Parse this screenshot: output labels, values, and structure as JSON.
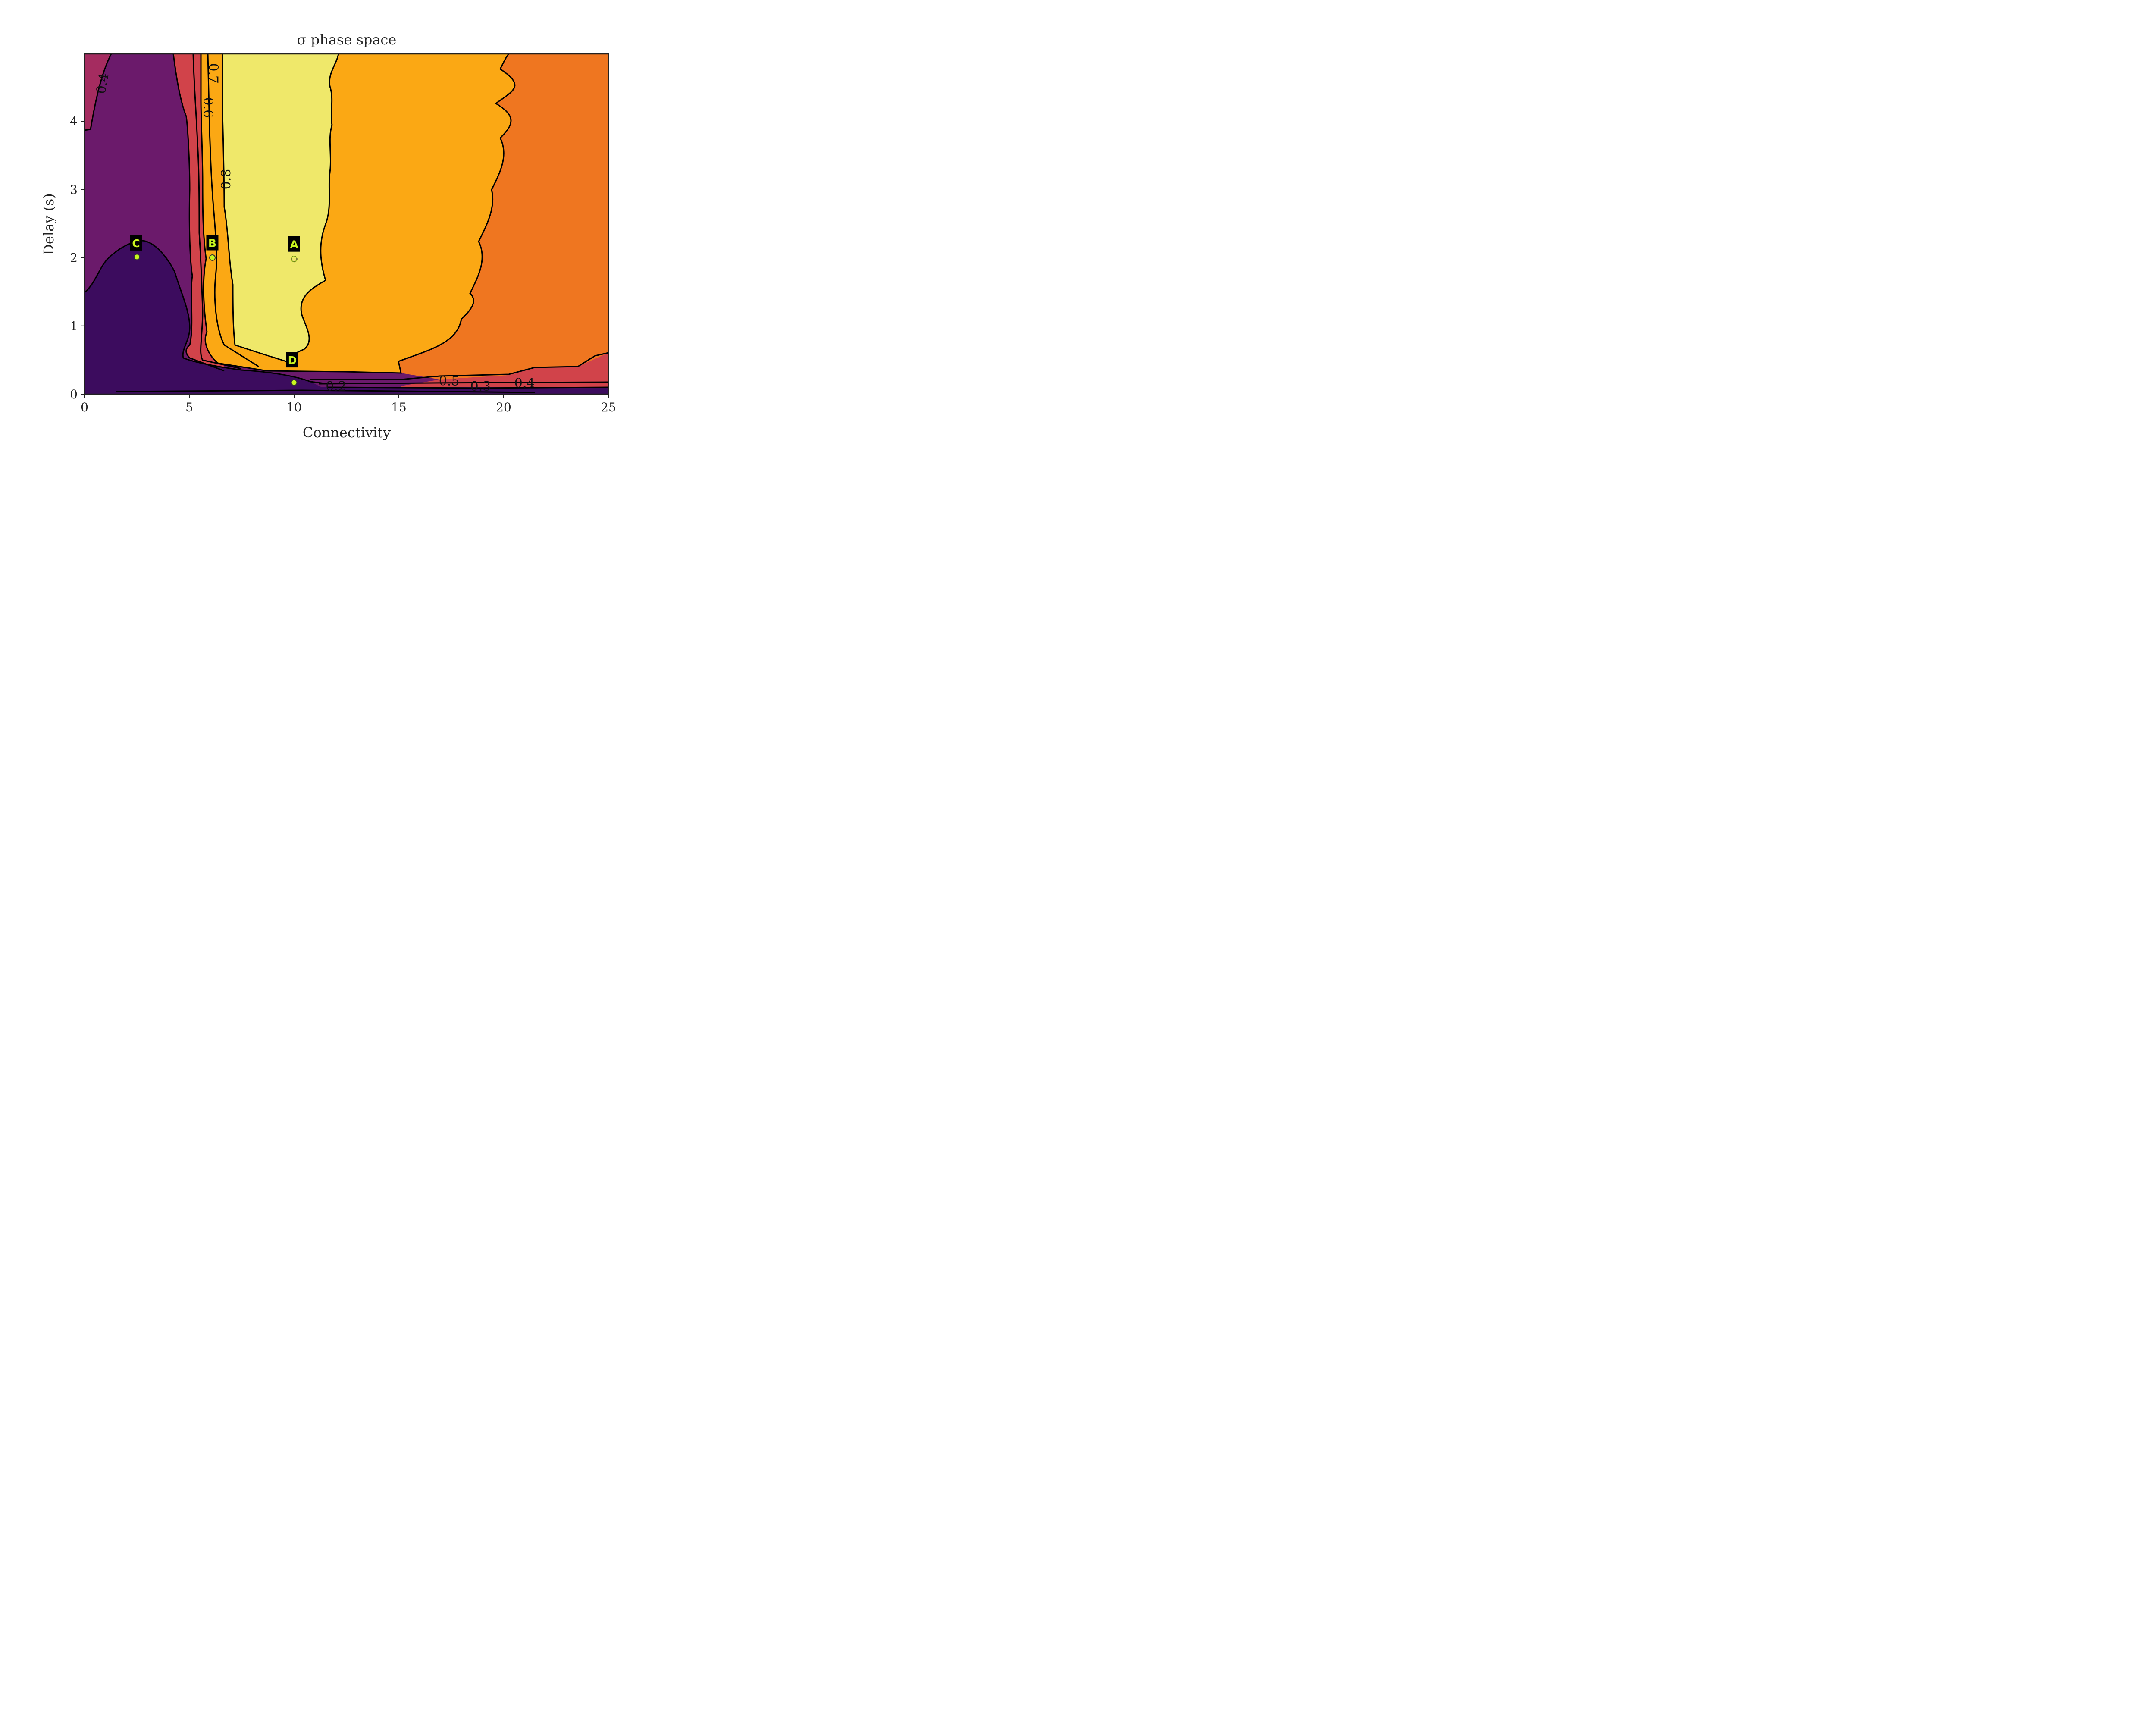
{
  "chart_data": {
    "type": "contour",
    "title": "σ phase space",
    "xlabel": "Connectivity",
    "ylabel": "Delay (s)",
    "xlim": [
      0,
      25
    ],
    "ylim": [
      0,
      5
    ],
    "x_ticks": [
      "0",
      "5",
      "10",
      "15",
      "20",
      "25"
    ],
    "x_tick_values": [
      0,
      5,
      10,
      15,
      20,
      25
    ],
    "y_ticks": [
      "0",
      "1",
      "2",
      "3",
      "4"
    ],
    "y_tick_values": [
      0,
      1,
      2,
      3,
      4
    ],
    "colormap": "inferno",
    "grid": false,
    "contour_levels": [
      0.2,
      0.3,
      0.4,
      0.5,
      0.6,
      0.7,
      0.8
    ],
    "contour_labels": [
      {
        "text": "0.4",
        "x": 0.9,
        "y": 4.55
      },
      {
        "text": "0.7",
        "x": 6.1,
        "y": 4.7
      },
      {
        "text": "0.6",
        "x": 5.85,
        "y": 4.2
      },
      {
        "text": "0.8",
        "x": 6.8,
        "y": 3.15
      },
      {
        "text": "0.2",
        "x": 12.0,
        "y": 0.1
      },
      {
        "text": "0.5",
        "x": 17.4,
        "y": 0.18
      },
      {
        "text": "0.3",
        "x": 18.9,
        "y": 0.1
      },
      {
        "text": "0.4",
        "x": 21.0,
        "y": 0.15
      }
    ],
    "points": [
      {
        "label": "A",
        "x": 10.0,
        "y": 1.98,
        "hollow": true
      },
      {
        "label": "B",
        "x": 6.1,
        "y": 2.0,
        "hollow": false
      },
      {
        "label": "C",
        "x": 2.5,
        "y": 2.01,
        "hollow": false
      },
      {
        "label": "D",
        "x": 10.0,
        "y": 0.17,
        "hollow": false
      }
    ],
    "colors": {
      "bg_level": "#6b1a6b",
      "level_03": "#3c0c5e",
      "level_05": "#a52c60",
      "level_06": "#d1434a",
      "level_07": "#ef7620",
      "level_08": "#fba814",
      "level_09": "#efe86a",
      "marker": "#c8f51f",
      "label_bg": "#000000"
    }
  }
}
